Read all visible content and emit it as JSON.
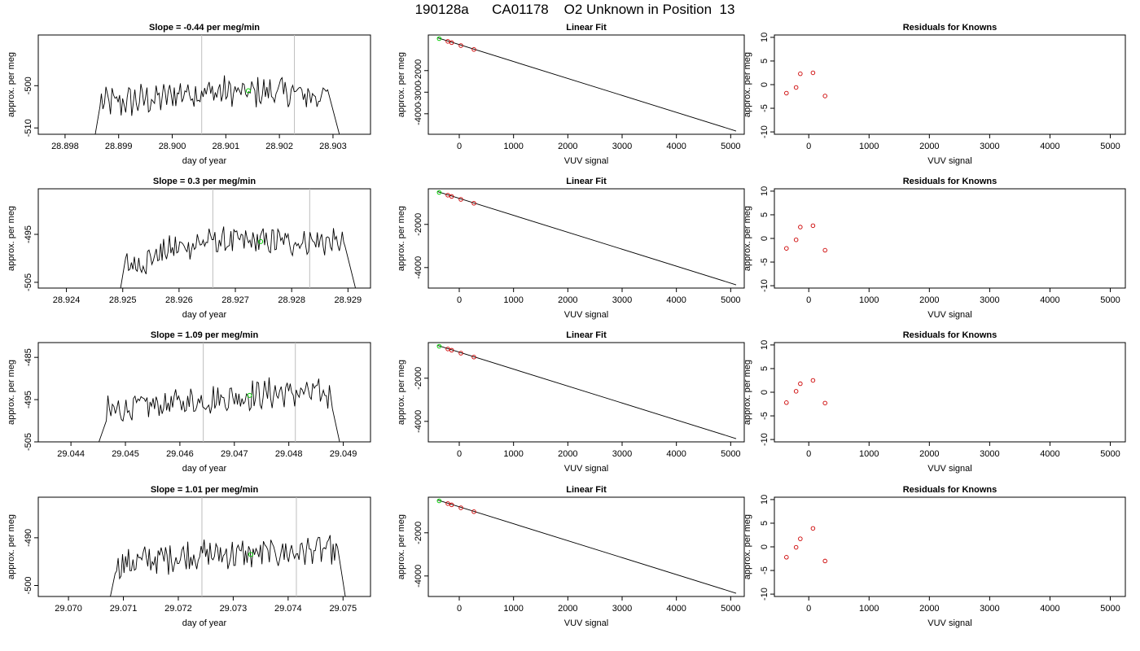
{
  "figure": {
    "title": "190128a      CA01178    O2 Unknown in Position  13"
  },
  "chart_data": [
    {
      "type": "line",
      "panel": "trace",
      "title": "Slope =  -0.44  per meg/min",
      "xlabel": "day of year",
      "ylabel": "approx. per meg",
      "xlim": [
        28.8975,
        28.9037
      ],
      "ylim": [
        -511.5,
        -488
      ],
      "xticks": [
        28.898,
        28.899,
        28.9,
        28.901,
        28.902,
        28.903
      ],
      "xtick_labels": [
        "28.898",
        "28.899",
        "28.900",
        "28.901",
        "28.902",
        "28.903"
      ],
      "yticks": [
        -510,
        -500
      ],
      "ytick_labels": [
        "-510",
        "-500"
      ],
      "noise_amplitude": 3.2,
      "start": [
        28.89855,
        -512.5
      ],
      "rise": [
        28.89865,
        -505
      ],
      "plateau": [
        -504,
        -504,
        -503.3,
        -503,
        -501.5,
        -501.5,
        -501.5,
        -501.8,
        -501.5,
        -501.5,
        -502.2,
        -502.5
      ],
      "plateau_end": 28.9029,
      "end": [
        28.90315,
        -513
      ],
      "vlines": [
        28.90055,
        28.90228
      ],
      "green_point": [
        28.90142,
        -501.2
      ]
    },
    {
      "type": "line",
      "panel": "trace",
      "title": "Slope =  0.3  per meg/min",
      "xlabel": "day of year",
      "ylabel": "approx. per meg",
      "xlim": [
        28.9235,
        28.9294
      ],
      "ylim": [
        -506.2,
        -485.5
      ],
      "xticks": [
        28.924,
        28.925,
        28.926,
        28.927,
        28.928,
        28.929
      ],
      "xtick_labels": [
        "28.924",
        "28.925",
        "28.926",
        "28.927",
        "28.928",
        "28.929"
      ],
      "yticks": [
        -505,
        -495
      ],
      "ytick_labels": [
        "-505",
        "-495"
      ],
      "noise_amplitude": 2.6,
      "start": [
        28.92495,
        -507
      ],
      "rise": [
        28.92505,
        -500
      ],
      "plateau": [
        -501.5,
        -500.5,
        -498.5,
        -497.5,
        -496.5,
        -496.5,
        -496.5,
        -496.5,
        -496.5,
        -496.5,
        -496.5,
        -497
      ],
      "plateau_end": 28.92895,
      "end": [
        28.92915,
        -507
      ],
      "vlines": [
        28.9266,
        28.92832
      ],
      "green_point": [
        28.92745,
        -496.5
      ]
    },
    {
      "type": "line",
      "panel": "trace",
      "title": "Slope =  1.09  per meg/min",
      "xlabel": "day of year",
      "ylabel": "approx. per meg",
      "xlim": [
        29.0434,
        29.0495
      ],
      "ylim": [
        -505,
        -481.5
      ],
      "xticks": [
        29.044,
        29.045,
        29.046,
        29.047,
        29.048,
        29.049
      ],
      "xtick_labels": [
        "29.044",
        "29.045",
        "29.046",
        "29.047",
        "29.048",
        "29.049"
      ],
      "yticks": [
        -505,
        -495,
        -485
      ],
      "ytick_labels": [
        "-505",
        "-495",
        "-485"
      ],
      "noise_amplitude": 3.0,
      "start": [
        29.0445,
        -505.5
      ],
      "rise": [
        29.04465,
        -500
      ],
      "plateau": [
        -498,
        -497,
        -496.5,
        -496,
        -495.5,
        -495,
        -494.5,
        -494,
        -493.5,
        -493.5,
        -493.5,
        -494
      ],
      "plateau_end": 29.0488,
      "end": [
        29.04895,
        -506
      ],
      "vlines": [
        29.04643,
        29.04812
      ],
      "green_point": [
        29.04728,
        -494
      ]
    },
    {
      "type": "line",
      "panel": "trace",
      "title": "Slope =  1.01  per meg/min",
      "xlabel": "day of year",
      "ylabel": "approx. per meg",
      "xlim": [
        29.06945,
        29.0755
      ],
      "ylim": [
        -502.3,
        -481.5
      ],
      "xticks": [
        29.07,
        29.071,
        29.072,
        29.073,
        29.074,
        29.075
      ],
      "xtick_labels": [
        "29.070",
        "29.071",
        "29.072",
        "29.073",
        "29.074",
        "29.075"
      ],
      "yticks": [
        -500,
        -490
      ],
      "ytick_labels": [
        "-500",
        "-490"
      ],
      "noise_amplitude": 2.8,
      "start": [
        29.07075,
        -503
      ],
      "rise": [
        29.07085,
        -497.5
      ],
      "plateau": [
        -496,
        -495,
        -494.5,
        -494,
        -493.5,
        -493.5,
        -493.5,
        -493.5,
        -493,
        -493,
        -492.5,
        -493
      ],
      "plateau_end": 29.0749,
      "end": [
        29.07505,
        -503
      ],
      "vlines": [
        29.07243,
        29.07415
      ],
      "green_point": [
        29.07332,
        -493.5
      ]
    },
    {
      "type": "scatter",
      "panel": "fit",
      "title": "Linear Fit",
      "xlabel": "VUV signal",
      "ylabel": "approx. per meg",
      "xlim": [
        -570,
        5250
      ],
      "ylim": [
        -4950,
        -350
      ],
      "xticks": [
        0,
        1000,
        2000,
        3000,
        4000,
        5000
      ],
      "yticks": [
        -2000,
        -3000,
        -4000
      ],
      "ytick_labels": [
        "-2000",
        "-3000",
        "-4000"
      ],
      "line": [
        [
          -400,
          -480
        ],
        [
          5100,
          -4800
        ]
      ],
      "points": [
        [
          -210,
          -645
        ],
        [
          -140,
          -705
        ],
        [
          30,
          -840
        ],
        [
          270,
          -1020
        ]
      ],
      "green_point": [
        -370,
        -520
      ]
    },
    {
      "type": "scatter",
      "panel": "fit",
      "title": "Linear Fit",
      "xlabel": "VUV signal",
      "ylabel": "approx. per meg",
      "xlim": [
        -570,
        5250
      ],
      "ylim": [
        -4950,
        -350
      ],
      "xticks": [
        0,
        1000,
        2000,
        3000,
        4000,
        5000
      ],
      "yticks": [
        -2000,
        -4000
      ],
      "ytick_labels": [
        "-2000",
        "-4000"
      ],
      "line": [
        [
          -400,
          -480
        ],
        [
          5100,
          -4800
        ]
      ],
      "points": [
        [
          -210,
          -645
        ],
        [
          -140,
          -705
        ],
        [
          30,
          -840
        ],
        [
          270,
          -1020
        ]
      ],
      "green_point": [
        -370,
        -520
      ]
    },
    {
      "type": "scatter",
      "panel": "fit",
      "title": "Linear Fit",
      "xlabel": "VUV signal",
      "ylabel": "approx. per meg",
      "xlim": [
        -570,
        5250
      ],
      "ylim": [
        -4950,
        -350
      ],
      "xticks": [
        0,
        1000,
        2000,
        3000,
        4000,
        5000
      ],
      "yticks": [
        -2000,
        -4000
      ],
      "ytick_labels": [
        "-2000",
        "-4000"
      ],
      "line": [
        [
          -400,
          -480
        ],
        [
          5100,
          -4800
        ]
      ],
      "points": [
        [
          -210,
          -645
        ],
        [
          -140,
          -705
        ],
        [
          30,
          -840
        ],
        [
          270,
          -1020
        ]
      ],
      "green_point": [
        -370,
        -520
      ]
    },
    {
      "type": "scatter",
      "panel": "fit",
      "title": "Linear Fit",
      "xlabel": "VUV signal",
      "ylabel": "approx. per meg",
      "xlim": [
        -570,
        5250
      ],
      "ylim": [
        -4950,
        -350
      ],
      "xticks": [
        0,
        1000,
        2000,
        3000,
        4000,
        5000
      ],
      "yticks": [
        -2000,
        -4000
      ],
      "ytick_labels": [
        "-2000",
        "-4000"
      ],
      "line": [
        [
          -400,
          -480
        ],
        [
          5100,
          -4800
        ]
      ],
      "points": [
        [
          -210,
          -645
        ],
        [
          -140,
          -705
        ],
        [
          30,
          -840
        ],
        [
          270,
          -1020
        ]
      ],
      "green_point": [
        -370,
        -520
      ]
    },
    {
      "type": "scatter",
      "panel": "residual",
      "title": "Residuals for Knowns",
      "xlabel": "VUV signal",
      "ylabel": "approx. per meg",
      "xlim": [
        -570,
        5250
      ],
      "ylim": [
        -10.5,
        10.5
      ],
      "xticks": [
        0,
        1000,
        2000,
        3000,
        4000,
        5000
      ],
      "yticks": [
        -10,
        -5,
        0,
        5,
        10
      ],
      "ytick_labels": [
        "-10",
        "-5",
        "0",
        "5",
        "10"
      ],
      "points": [
        [
          -370,
          -1.8
        ],
        [
          -210,
          -0.6
        ],
        [
          -140,
          2.3
        ],
        [
          70,
          2.5
        ],
        [
          270,
          -2.4
        ]
      ]
    },
    {
      "type": "scatter",
      "panel": "residual",
      "title": "Residuals for Knowns",
      "xlabel": "VUV signal",
      "ylabel": "approx. per meg",
      "xlim": [
        -570,
        5250
      ],
      "ylim": [
        -10.5,
        10.5
      ],
      "xticks": [
        0,
        1000,
        2000,
        3000,
        4000,
        5000
      ],
      "yticks": [
        -10,
        -5,
        0,
        5,
        10
      ],
      "ytick_labels": [
        "-10",
        "-5",
        "0",
        "5",
        "10"
      ],
      "points": [
        [
          -370,
          -2.1
        ],
        [
          -210,
          -0.3
        ],
        [
          -140,
          2.4
        ],
        [
          70,
          2.7
        ],
        [
          270,
          -2.5
        ]
      ]
    },
    {
      "type": "scatter",
      "panel": "residual",
      "title": "Residuals for Knowns",
      "xlabel": "VUV signal",
      "ylabel": "approx. per meg",
      "xlim": [
        -570,
        5250
      ],
      "ylim": [
        -10.5,
        10.5
      ],
      "xticks": [
        0,
        1000,
        2000,
        3000,
        4000,
        5000
      ],
      "yticks": [
        -10,
        -5,
        0,
        5,
        10
      ],
      "ytick_labels": [
        "-10",
        "-5",
        "0",
        "5",
        "10"
      ],
      "points": [
        [
          -370,
          -2.2
        ],
        [
          -210,
          0.2
        ],
        [
          -140,
          1.8
        ],
        [
          70,
          2.5
        ],
        [
          270,
          -2.3
        ]
      ]
    },
    {
      "type": "scatter",
      "panel": "residual",
      "title": "Residuals for Knowns",
      "xlabel": "VUV signal",
      "ylabel": "approx. per meg",
      "xlim": [
        -570,
        5250
      ],
      "ylim": [
        -10.5,
        10.5
      ],
      "xticks": [
        0,
        1000,
        2000,
        3000,
        4000,
        5000
      ],
      "yticks": [
        -10,
        -5,
        0,
        5,
        10
      ],
      "ytick_labels": [
        "-10",
        "-5",
        "0",
        "5",
        "10"
      ],
      "points": [
        [
          -370,
          -2.2
        ],
        [
          -210,
          -0.1
        ],
        [
          -140,
          1.7
        ],
        [
          70,
          3.9
        ],
        [
          270,
          -3.0
        ]
      ]
    }
  ],
  "colors": {
    "trace": "#000000",
    "vertical_line": "#bebebe",
    "known_point": "#cd0000",
    "unknown_point": "#00cd00"
  }
}
